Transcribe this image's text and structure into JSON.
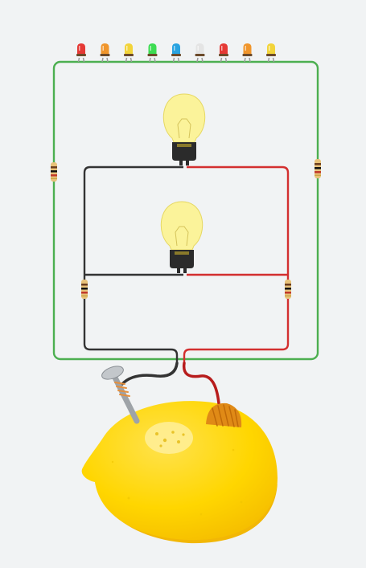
{
  "colors": {
    "background": "#f1f3f4",
    "wire_outer": "#4caf50",
    "wire_negative": "#333333",
    "wire_positive": "#d32f2f",
    "bulb_glass": "#fbf39a",
    "bulb_base": "#2b2b2b",
    "lemon": "#ffd600",
    "lemon_shadow": "#f2b705",
    "nail": "#9ea3a8",
    "copper": "#e08a16"
  },
  "leds": [
    {
      "color": "#e53935"
    },
    {
      "color": "#f0952b"
    },
    {
      "color": "#f2d43a"
    },
    {
      "color": "#3ddc52"
    },
    {
      "color": "#29a3e0"
    },
    {
      "color": "#e4e4e4"
    },
    {
      "color": "#e53935"
    },
    {
      "color": "#f0952b"
    },
    {
      "color": "#f2d43a"
    }
  ],
  "bulbs": [
    {
      "name": "top-light-bulb",
      "state": "on"
    },
    {
      "name": "bottom-light-bulb",
      "state": "on"
    }
  ],
  "resistors": [
    {
      "name": "left-outer-resistor"
    },
    {
      "name": "right-outer-resistor"
    },
    {
      "name": "left-inner-resistor"
    },
    {
      "name": "right-inner-resistor"
    }
  ],
  "battery": {
    "fruit": "lemon",
    "electrodes": [
      "zinc-nail",
      "copper-coil"
    ]
  }
}
